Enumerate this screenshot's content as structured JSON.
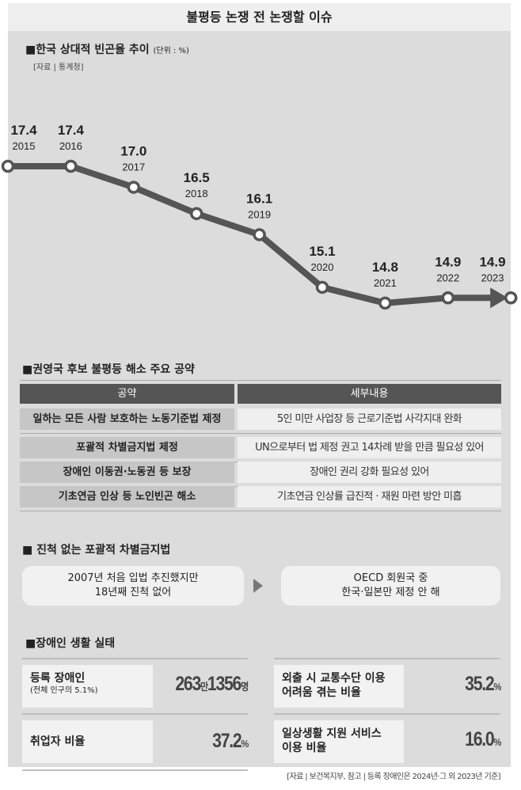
{
  "title": "불평등 논쟁 전 논쟁할 이슈",
  "chart_data": {
    "type": "line",
    "title": "한국 상대적 빈곤율 추이",
    "unit": "(단위 : %)",
    "source": "[자료 | 통계청]",
    "categories": [
      "2015",
      "2016",
      "2017",
      "2018",
      "2019",
      "2020",
      "2021",
      "2022",
      "2023"
    ],
    "values": [
      17.4,
      17.4,
      17.0,
      16.5,
      16.1,
      15.1,
      14.8,
      14.9,
      14.9
    ],
    "value_labels": [
      "17.4",
      "17.4",
      "17.0",
      "16.5",
      "16.1",
      "15.1",
      "14.8",
      "14.9",
      "14.9"
    ],
    "line_color": "#555555"
  },
  "pledges": {
    "heading": "권영국 후보 불평등 해소 주요 공약",
    "headers": [
      "공약",
      "세부내용"
    ],
    "rows": [
      [
        "일하는 모든 사람 보호하는 노동기준법 제정",
        "5인 미만 사업장 등 근로기준법 사각지대 완화"
      ],
      [
        "포괄적 차별금지법 제정",
        "UN으로부터 법 제정 권고 14차례 받을 만큼 필요성 있어"
      ],
      [
        "장애인 이동권·노동권 등 보장",
        "장애인 권리 강화 필요성 있어"
      ],
      [
        "기초연금 인상 등 노인빈곤 해소",
        "기초연금 인상률 급진적 · 재원 마련 방안 미흡"
      ]
    ]
  },
  "antidisc": {
    "heading": "진척 없는 포괄적 차별금지법",
    "left": [
      "2007년 처음 입법 추진했지만",
      "18년째 진척 없어"
    ],
    "right": [
      "OECD 회원국 중",
      "한국·일본만 제정 안 해"
    ]
  },
  "disabled": {
    "heading": "장애인 생활 실태",
    "stats": [
      {
        "label": "등록 장애인",
        "sub": "(전체 인구의 5.1%)",
        "value_a": "263",
        "unit_a": "만",
        "value_b": "1356",
        "unit_b": "명"
      },
      {
        "label": "취업자 비율",
        "value": "37.2",
        "unit": "%"
      },
      {
        "label": "외출 시 교통수단 이용",
        "label2": "어려움 겪는 비율",
        "value": "35.2",
        "unit": "%"
      },
      {
        "label": "일상생활 지원 서비스",
        "label2": "이용 비율",
        "value": "16.0",
        "unit": "%"
      }
    ],
    "source": "[자료 | 보건복지부, 참고 | 등록 장애인은 2024년·그 외 2023년 기준]"
  }
}
